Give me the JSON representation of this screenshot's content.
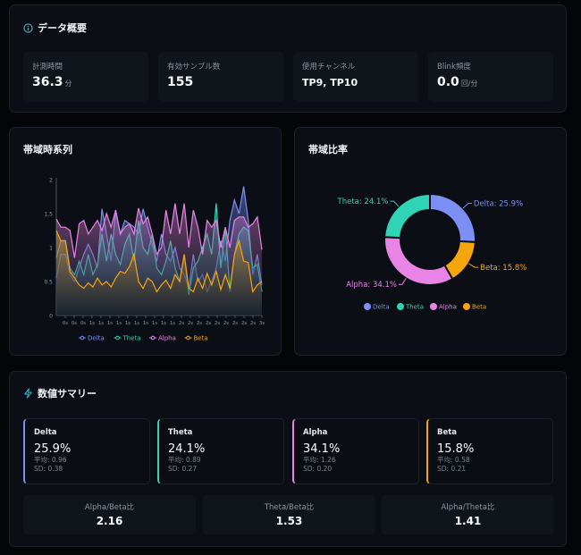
{
  "overview": {
    "title": "データ概要",
    "icon": "info-icon",
    "stats": [
      {
        "label": "計測時間",
        "value": "36.3",
        "unit": "分"
      },
      {
        "label": "有効サンプル数",
        "value": "155",
        "unit": ""
      },
      {
        "label": "使用チャンネル",
        "value": "TP9, TP10",
        "unit": ""
      },
      {
        "label": "Blink頻度",
        "value": "0.0",
        "unit": "回/分"
      }
    ]
  },
  "timeseries": {
    "title": "帯域時系列"
  },
  "ratio_panel": {
    "title": "帯域比率"
  },
  "colors": {
    "Delta": "#7c8ff5",
    "Theta": "#2fd3b5",
    "Alpha": "#e884e6",
    "Beta": "#f5a60c"
  },
  "chart_data": [
    {
      "type": "area",
      "ylim": [
        0,
        2
      ],
      "yticks": [
        "0",
        "0.5",
        "1",
        "1.5",
        "2"
      ],
      "xticks": [
        "0s",
        "0s",
        "0s",
        "1s",
        "1s",
        "1s",
        "1s",
        "1s",
        "1s",
        "1s",
        "1s",
        "1s",
        "1s",
        "2s",
        "2s",
        "2s",
        "2s",
        "2s",
        "2s",
        "2s",
        "2s",
        "2s",
        "3s"
      ],
      "legend_position": "bottom",
      "series": [
        {
          "name": "Delta",
          "values": [
            0.55,
            0.9,
            0.9,
            0.6,
            0.5,
            0.7,
            0.9,
            1.05,
            0.9,
            0.7,
            1.57,
            1.2,
            0.8,
            1.55,
            1.2,
            1.4,
            1.35,
            1.3,
            1.2,
            1.57,
            1.3,
            1.05,
            0.8,
            1.2,
            0.9,
            0.8,
            1.0,
            0.7,
            0.6,
            0.4,
            0.9,
            0.5,
            0.6,
            0.35,
            0.5,
            0.7,
            1.1,
            0.8,
            1.4,
            1.7,
            1.5,
            1.9,
            1.4,
            0.6,
            0.9,
            0.45
          ]
        },
        {
          "name": "Theta",
          "values": [
            0.85,
            1.1,
            1.1,
            0.7,
            0.6,
            0.8,
            0.6,
            0.9,
            0.6,
            0.75,
            1.2,
            0.8,
            1.2,
            0.9,
            0.75,
            1.05,
            1.2,
            0.8,
            1.4,
            1.0,
            0.9,
            1.2,
            0.7,
            0.6,
            0.8,
            1.1,
            0.7,
            0.5,
            0.9,
            0.3,
            0.7,
            0.8,
            1.0,
            1.2,
            0.9,
            1.65,
            0.7,
            1.3,
            0.35,
            0.9,
            1.2,
            1.3,
            1.25,
            0.7,
            0.75,
            0.35
          ]
        },
        {
          "name": "Alpha",
          "values": [
            1.42,
            1.3,
            1.3,
            1.25,
            0.85,
            1.35,
            1.4,
            1.2,
            1.3,
            1.4,
            1.25,
            1.5,
            1.3,
            1.55,
            1.2,
            1.3,
            1.35,
            1.2,
            1.58,
            1.35,
            1.45,
            1.2,
            0.9,
            1.0,
            1.55,
            1.2,
            1.65,
            1.2,
            1.65,
            1.0,
            1.55,
            1.3,
            0.9,
            1.4,
            1.3,
            1.4,
            1.0,
            1.3,
            1.0,
            1.4,
            1.45,
            1.45,
            1.3,
            1.35,
            1.45,
            0.97
          ]
        },
        {
          "name": "Beta",
          "values": [
            1.25,
            1.1,
            1.1,
            0.65,
            0.55,
            0.45,
            0.4,
            0.48,
            0.42,
            0.55,
            0.45,
            0.5,
            0.42,
            0.55,
            0.65,
            0.62,
            0.72,
            0.9,
            0.5,
            0.4,
            0.55,
            0.5,
            0.35,
            0.45,
            0.52,
            0.4,
            0.6,
            0.5,
            0.9,
            0.4,
            0.35,
            0.55,
            0.4,
            0.62,
            0.45,
            0.65,
            0.38,
            0.6,
            0.4,
            0.9,
            1.1,
            0.8,
            0.78,
            0.35,
            0.45,
            0.5
          ]
        }
      ]
    },
    {
      "type": "pie",
      "donut": true,
      "legend_position": "bottom",
      "categories": [
        "Delta",
        "Beta",
        "Alpha",
        "Theta"
      ],
      "values": [
        25.9,
        15.8,
        34.1,
        24.1
      ],
      "labels": [
        "Delta: 25.9%",
        "Beta: 15.8%",
        "Alpha: 34.1%",
        "Theta: 24.1%"
      ],
      "legend": [
        "Delta",
        "Theta",
        "Alpha",
        "Beta"
      ]
    }
  ],
  "summary": {
    "title": "数値サマリー",
    "icon": "lightning-icon",
    "bands": [
      {
        "name": "Delta",
        "pct": "25.9%",
        "mean": "平均: 0.96",
        "sd": "SD: 0.38"
      },
      {
        "name": "Theta",
        "pct": "24.1%",
        "mean": "平均: 0.89",
        "sd": "SD: 0.27"
      },
      {
        "name": "Alpha",
        "pct": "34.1%",
        "mean": "平均: 1.26",
        "sd": "SD: 0.20"
      },
      {
        "name": "Beta",
        "pct": "15.8%",
        "mean": "平均: 0.58",
        "sd": "SD: 0.21"
      }
    ],
    "ratios": [
      {
        "label": "Alpha/Beta比",
        "value": "2.16"
      },
      {
        "label": "Theta/Beta比",
        "value": "1.53"
      },
      {
        "label": "Alpha/Theta比",
        "value": "1.41"
      }
    ]
  }
}
